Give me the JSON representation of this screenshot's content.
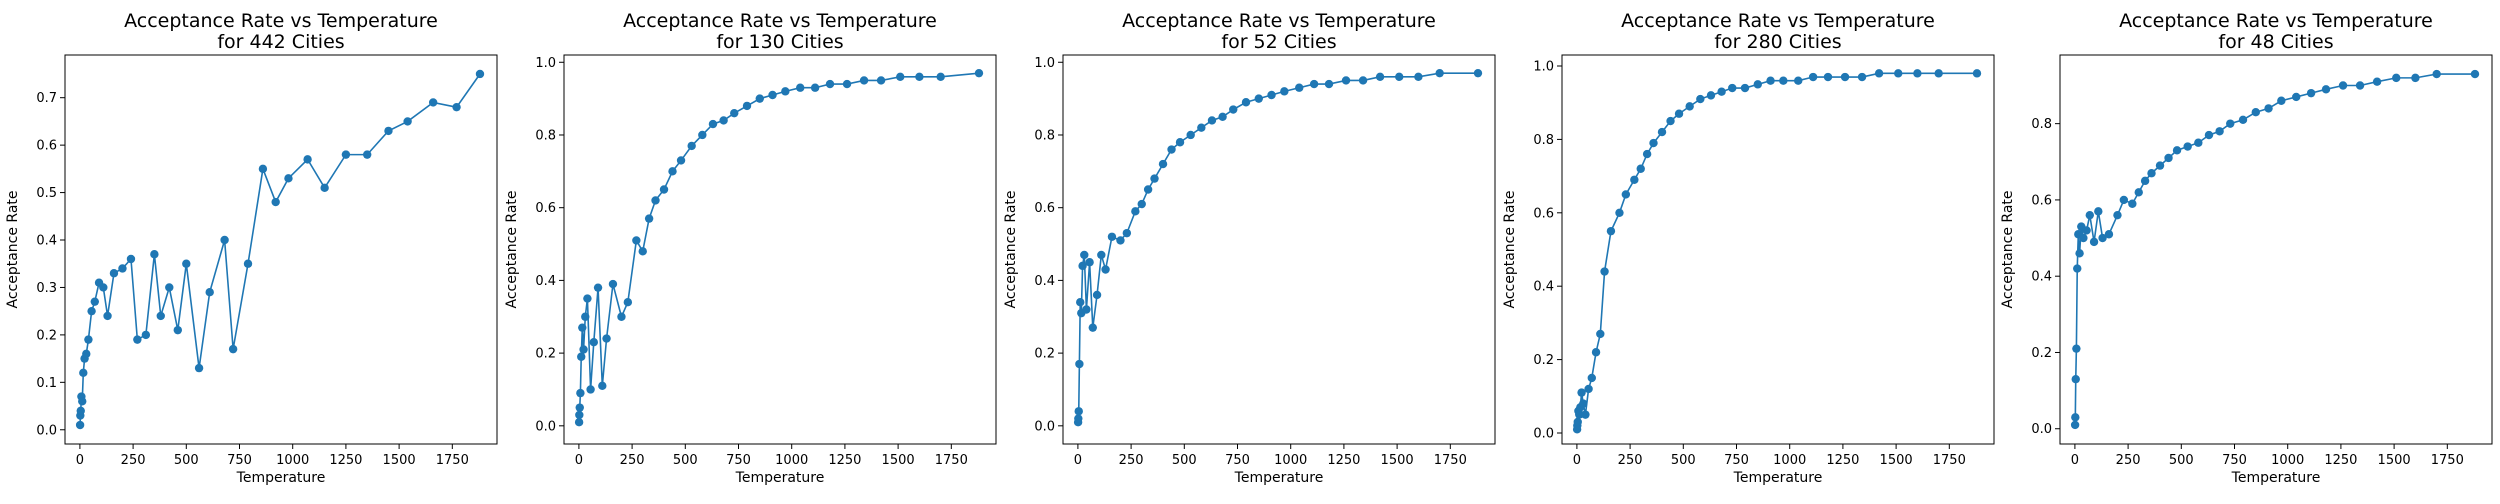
{
  "figure": {
    "background": "#ffffff",
    "line_color": "#1f77b4"
  },
  "chart_data": [
    {
      "type": "line",
      "title": "Acceptance Rate vs Temperature\nfor 442 Cities",
      "xlabel": "Temperature",
      "ylabel": "Acceptance Rate",
      "xlim": [
        -70,
        1960
      ],
      "ylim": [
        -0.03,
        0.79
      ],
      "xticks": [
        0,
        250,
        500,
        750,
        1000,
        1250,
        1500,
        1750
      ],
      "yticks": [
        0.0,
        0.1,
        0.2,
        0.3,
        0.4,
        0.5,
        0.6,
        0.7
      ],
      "grid": false,
      "legend": false,
      "marker": "circle",
      "series": [
        {
          "x": [
            1,
            2,
            4,
            7,
            11,
            16,
            22,
            30,
            40,
            55,
            70,
            90,
            110,
            130,
            160,
            200,
            240,
            270,
            310,
            350,
            380,
            420,
            460,
            500,
            560,
            610,
            680,
            720,
            790,
            860,
            920,
            980,
            1070,
            1150,
            1250,
            1350,
            1450,
            1540,
            1660,
            1770,
            1880
          ],
          "y": [
            0.01,
            0.03,
            0.04,
            0.07,
            0.06,
            0.12,
            0.15,
            0.16,
            0.19,
            0.25,
            0.27,
            0.31,
            0.3,
            0.24,
            0.33,
            0.34,
            0.36,
            0.19,
            0.2,
            0.37,
            0.24,
            0.3,
            0.21,
            0.35,
            0.13,
            0.29,
            0.4,
            0.17,
            0.35,
            0.55,
            0.48,
            0.53,
            0.57,
            0.51,
            0.58,
            0.58,
            0.63,
            0.65,
            0.69,
            0.68,
            0.75
          ]
        }
      ]
    },
    {
      "type": "line",
      "title": "Acceptance Rate vs Temperature\nfor 130 Cities",
      "xlabel": "Temperature",
      "ylabel": "Acceptance Rate",
      "xlim": [
        -70,
        1960
      ],
      "ylim": [
        -0.05,
        1.02
      ],
      "xticks": [
        0,
        250,
        500,
        750,
        1000,
        1250,
        1500,
        1750
      ],
      "yticks": [
        0.0,
        0.2,
        0.4,
        0.6,
        0.8,
        1.0
      ],
      "grid": false,
      "legend": false,
      "marker": "circle",
      "series": [
        {
          "x": [
            1,
            2,
            4,
            7,
            11,
            16,
            22,
            30,
            40,
            55,
            70,
            90,
            110,
            130,
            160,
            200,
            230,
            270,
            300,
            330,
            360,
            400,
            440,
            480,
            530,
            580,
            630,
            680,
            730,
            790,
            850,
            910,
            970,
            1040,
            1110,
            1180,
            1260,
            1340,
            1420,
            1510,
            1600,
            1700,
            1880
          ],
          "y": [
            0.01,
            0.03,
            0.05,
            0.09,
            0.19,
            0.27,
            0.21,
            0.3,
            0.35,
            0.1,
            0.23,
            0.38,
            0.11,
            0.24,
            0.39,
            0.3,
            0.34,
            0.51,
            0.48,
            0.57,
            0.62,
            0.65,
            0.7,
            0.73,
            0.77,
            0.8,
            0.83,
            0.84,
            0.86,
            0.88,
            0.9,
            0.91,
            0.92,
            0.93,
            0.93,
            0.94,
            0.94,
            0.95,
            0.95,
            0.96,
            0.96,
            0.96,
            0.97
          ]
        }
      ]
    },
    {
      "type": "line",
      "title": "Acceptance Rate vs Temperature\nfor 52 Cities",
      "xlabel": "Temperature",
      "ylabel": "Acceptance Rate",
      "xlim": [
        -70,
        1960
      ],
      "ylim": [
        -0.05,
        1.02
      ],
      "xticks": [
        0,
        250,
        500,
        750,
        1000,
        1250,
        1500,
        1750
      ],
      "yticks": [
        0.0,
        0.2,
        0.4,
        0.6,
        0.8,
        1.0
      ],
      "grid": false,
      "legend": false,
      "marker": "circle",
      "series": [
        {
          "x": [
            1,
            2,
            4,
            7,
            11,
            16,
            22,
            30,
            40,
            55,
            70,
            90,
            110,
            130,
            160,
            200,
            230,
            270,
            300,
            330,
            360,
            400,
            440,
            480,
            530,
            580,
            630,
            680,
            730,
            790,
            850,
            910,
            970,
            1040,
            1110,
            1180,
            1260,
            1340,
            1420,
            1510,
            1600,
            1700,
            1880
          ],
          "y": [
            0.01,
            0.02,
            0.04,
            0.17,
            0.34,
            0.31,
            0.44,
            0.47,
            0.32,
            0.45,
            0.27,
            0.36,
            0.47,
            0.43,
            0.52,
            0.51,
            0.53,
            0.59,
            0.61,
            0.65,
            0.68,
            0.72,
            0.76,
            0.78,
            0.8,
            0.82,
            0.84,
            0.85,
            0.87,
            0.89,
            0.9,
            0.91,
            0.92,
            0.93,
            0.94,
            0.94,
            0.95,
            0.95,
            0.96,
            0.96,
            0.96,
            0.97,
            0.97
          ]
        }
      ]
    },
    {
      "type": "line",
      "title": "Acceptance Rate vs Temperature\nfor 280 Cities",
      "xlabel": "Temperature",
      "ylabel": "Acceptance Rate",
      "xlim": [
        -70,
        1960
      ],
      "ylim": [
        -0.03,
        1.03
      ],
      "xticks": [
        0,
        250,
        500,
        750,
        1000,
        1250,
        1500,
        1750
      ],
      "yticks": [
        0.0,
        0.2,
        0.4,
        0.6,
        0.8,
        1.0
      ],
      "grid": false,
      "legend": false,
      "marker": "circle",
      "series": [
        {
          "x": [
            1,
            2,
            4,
            7,
            11,
            16,
            22,
            30,
            40,
            55,
            70,
            90,
            110,
            130,
            160,
            200,
            230,
            270,
            300,
            330,
            360,
            400,
            440,
            480,
            530,
            580,
            630,
            680,
            730,
            790,
            850,
            910,
            970,
            1040,
            1110,
            1180,
            1260,
            1340,
            1420,
            1510,
            1600,
            1700,
            1880
          ],
          "y": [
            0.01,
            0.02,
            0.03,
            0.06,
            0.05,
            0.07,
            0.11,
            0.08,
            0.05,
            0.12,
            0.15,
            0.22,
            0.27,
            0.44,
            0.55,
            0.6,
            0.65,
            0.69,
            0.72,
            0.76,
            0.79,
            0.82,
            0.85,
            0.87,
            0.89,
            0.91,
            0.92,
            0.93,
            0.94,
            0.94,
            0.95,
            0.96,
            0.96,
            0.96,
            0.97,
            0.97,
            0.97,
            0.97,
            0.98,
            0.98,
            0.98,
            0.98,
            0.98
          ]
        }
      ]
    },
    {
      "type": "line",
      "title": "Acceptance Rate vs Temperature\nfor 48 Cities",
      "xlabel": "Temperature",
      "ylabel": "Acceptance Rate",
      "xlim": [
        -70,
        1960
      ],
      "ylim": [
        -0.04,
        0.98
      ],
      "xticks": [
        0,
        250,
        500,
        750,
        1000,
        1250,
        1500,
        1750
      ],
      "yticks": [
        0.0,
        0.2,
        0.4,
        0.6,
        0.8
      ],
      "grid": false,
      "legend": false,
      "marker": "circle",
      "series": [
        {
          "x": [
            1,
            2,
            4,
            7,
            11,
            16,
            22,
            30,
            40,
            55,
            70,
            90,
            110,
            130,
            160,
            200,
            230,
            270,
            300,
            330,
            360,
            400,
            440,
            480,
            530,
            580,
            630,
            680,
            730,
            790,
            850,
            910,
            970,
            1040,
            1110,
            1180,
            1260,
            1340,
            1420,
            1510,
            1600,
            1700,
            1880
          ],
          "y": [
            0.01,
            0.03,
            0.13,
            0.21,
            0.42,
            0.51,
            0.46,
            0.53,
            0.5,
            0.52,
            0.56,
            0.49,
            0.57,
            0.5,
            0.51,
            0.56,
            0.6,
            0.59,
            0.62,
            0.65,
            0.67,
            0.69,
            0.71,
            0.73,
            0.74,
            0.75,
            0.77,
            0.78,
            0.8,
            0.81,
            0.83,
            0.84,
            0.86,
            0.87,
            0.88,
            0.89,
            0.9,
            0.9,
            0.91,
            0.92,
            0.92,
            0.93,
            0.93
          ]
        }
      ]
    }
  ]
}
